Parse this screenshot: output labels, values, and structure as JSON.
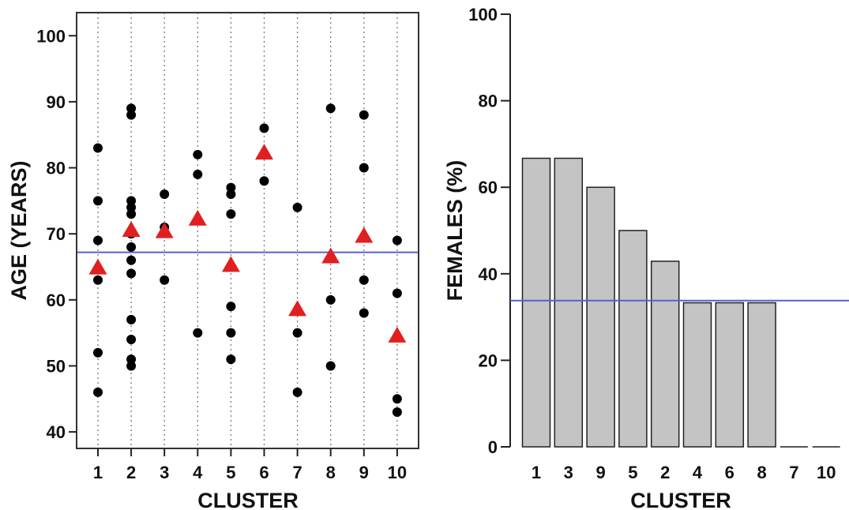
{
  "chart_data": [
    {
      "type": "scatter",
      "xlabel": "CLUSTER",
      "ylabel": "AGE (YEARS)",
      "categories": [
        "1",
        "2",
        "3",
        "4",
        "5",
        "6",
        "7",
        "8",
        "9",
        "10"
      ],
      "ylim": [
        37.5,
        103.5
      ],
      "yticks": [
        40,
        50,
        60,
        70,
        80,
        90,
        100
      ],
      "grid": "vertical dotted",
      "reference_line": 67.2,
      "series": [
        {
          "marker": "circle",
          "color": "#000000",
          "points": [
            {
              "x": "1",
              "y": 83
            },
            {
              "x": "1",
              "y": 75
            },
            {
              "x": "1",
              "y": 69
            },
            {
              "x": "1",
              "y": 63
            },
            {
              "x": "1",
              "y": 52
            },
            {
              "x": "1",
              "y": 46
            },
            {
              "x": "2",
              "y": 89
            },
            {
              "x": "2",
              "y": 88
            },
            {
              "x": "2",
              "y": 75
            },
            {
              "x": "2",
              "y": 74
            },
            {
              "x": "2",
              "y": 73
            },
            {
              "x": "2",
              "y": 70
            },
            {
              "x": "2",
              "y": 68
            },
            {
              "x": "2",
              "y": 66
            },
            {
              "x": "2",
              "y": 64
            },
            {
              "x": "2",
              "y": 57
            },
            {
              "x": "2",
              "y": 54
            },
            {
              "x": "2",
              "y": 51
            },
            {
              "x": "2",
              "y": 50
            },
            {
              "x": "3",
              "y": 76
            },
            {
              "x": "3",
              "y": 71
            },
            {
              "x": "3",
              "y": 63
            },
            {
              "x": "4",
              "y": 82
            },
            {
              "x": "4",
              "y": 79
            },
            {
              "x": "4",
              "y": 55
            },
            {
              "x": "5",
              "y": 77
            },
            {
              "x": "5",
              "y": 76
            },
            {
              "x": "5",
              "y": 73
            },
            {
              "x": "5",
              "y": 59
            },
            {
              "x": "5",
              "y": 55
            },
            {
              "x": "5",
              "y": 51
            },
            {
              "x": "6",
              "y": 86
            },
            {
              "x": "6",
              "y": 78
            },
            {
              "x": "7",
              "y": 74
            },
            {
              "x": "7",
              "y": 55
            },
            {
              "x": "7",
              "y": 46
            },
            {
              "x": "8",
              "y": 89
            },
            {
              "x": "8",
              "y": 60
            },
            {
              "x": "8",
              "y": 50
            },
            {
              "x": "9",
              "y": 88
            },
            {
              "x": "9",
              "y": 80
            },
            {
              "x": "9",
              "y": 63
            },
            {
              "x": "9",
              "y": 58
            },
            {
              "x": "10",
              "y": 69
            },
            {
              "x": "10",
              "y": 61
            },
            {
              "x": "10",
              "y": 45
            },
            {
              "x": "10",
              "y": 43
            }
          ]
        },
        {
          "marker": "triangle",
          "color": "#e02020",
          "points": [
            {
              "x": "1",
              "y": 64.8
            },
            {
              "x": "2",
              "y": 70.5
            },
            {
              "x": "3",
              "y": 70.3
            },
            {
              "x": "4",
              "y": 72.2
            },
            {
              "x": "5",
              "y": 65.2
            },
            {
              "x": "6",
              "y": 82.2
            },
            {
              "x": "7",
              "y": 58.5
            },
            {
              "x": "8",
              "y": 66.5
            },
            {
              "x": "9",
              "y": 69.6
            },
            {
              "x": "10",
              "y": 54.5
            }
          ]
        }
      ]
    },
    {
      "type": "bar",
      "xlabel": "CLUSTER",
      "ylabel": "FEMALES (%)",
      "categories": [
        "1",
        "3",
        "9",
        "5",
        "2",
        "4",
        "6",
        "8",
        "7",
        "10"
      ],
      "values": [
        66.7,
        66.7,
        60,
        50,
        42.9,
        33.3,
        33.3,
        33.3,
        0,
        0
      ],
      "ylim": [
        0,
        100
      ],
      "yticks": [
        0,
        20,
        40,
        60,
        80,
        100
      ],
      "bar_color": "#c4c4c4",
      "reference_line": 33.8
    }
  ]
}
